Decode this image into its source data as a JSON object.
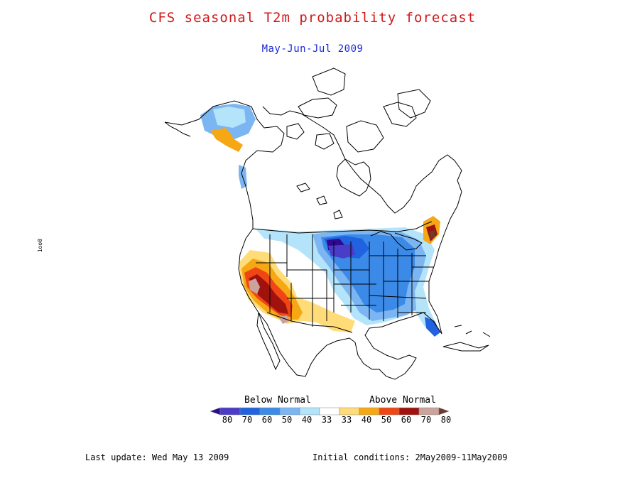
{
  "title": "CFS seasonal T2m probability forecast",
  "subtitle": "May-Jun-Jul 2009",
  "colors": {
    "title": "#d11a1a",
    "subtitle": "#1a2ad8",
    "land_outline": "#000000"
  },
  "legend": {
    "below_label": "Below Normal",
    "above_label": "Above Normal",
    "ticks": [
      "80",
      "70",
      "60",
      "50",
      "40",
      "33",
      "33",
      "40",
      "50",
      "60",
      "70",
      "80"
    ],
    "bins": [
      {
        "color": "#2d0a8f"
      },
      {
        "color": "#4b3cc8"
      },
      {
        "color": "#2062e0"
      },
      {
        "color": "#3c8ae8"
      },
      {
        "color": "#7cb6f2"
      },
      {
        "color": "#b4e4fa"
      },
      {
        "color": "#ffffff"
      },
      {
        "color": "#ffdc78"
      },
      {
        "color": "#f5a814"
      },
      {
        "color": "#f04616"
      },
      {
        "color": "#a0120e"
      },
      {
        "color": "#c8a49c"
      },
      {
        "color": "#6e3a2c"
      }
    ]
  },
  "footer": {
    "last_update": "Last update: Wed May 13 2009",
    "initial_conditions": "Initial conditions: 2May2009-11May2009"
  },
  "side_mark": "1oo0"
}
